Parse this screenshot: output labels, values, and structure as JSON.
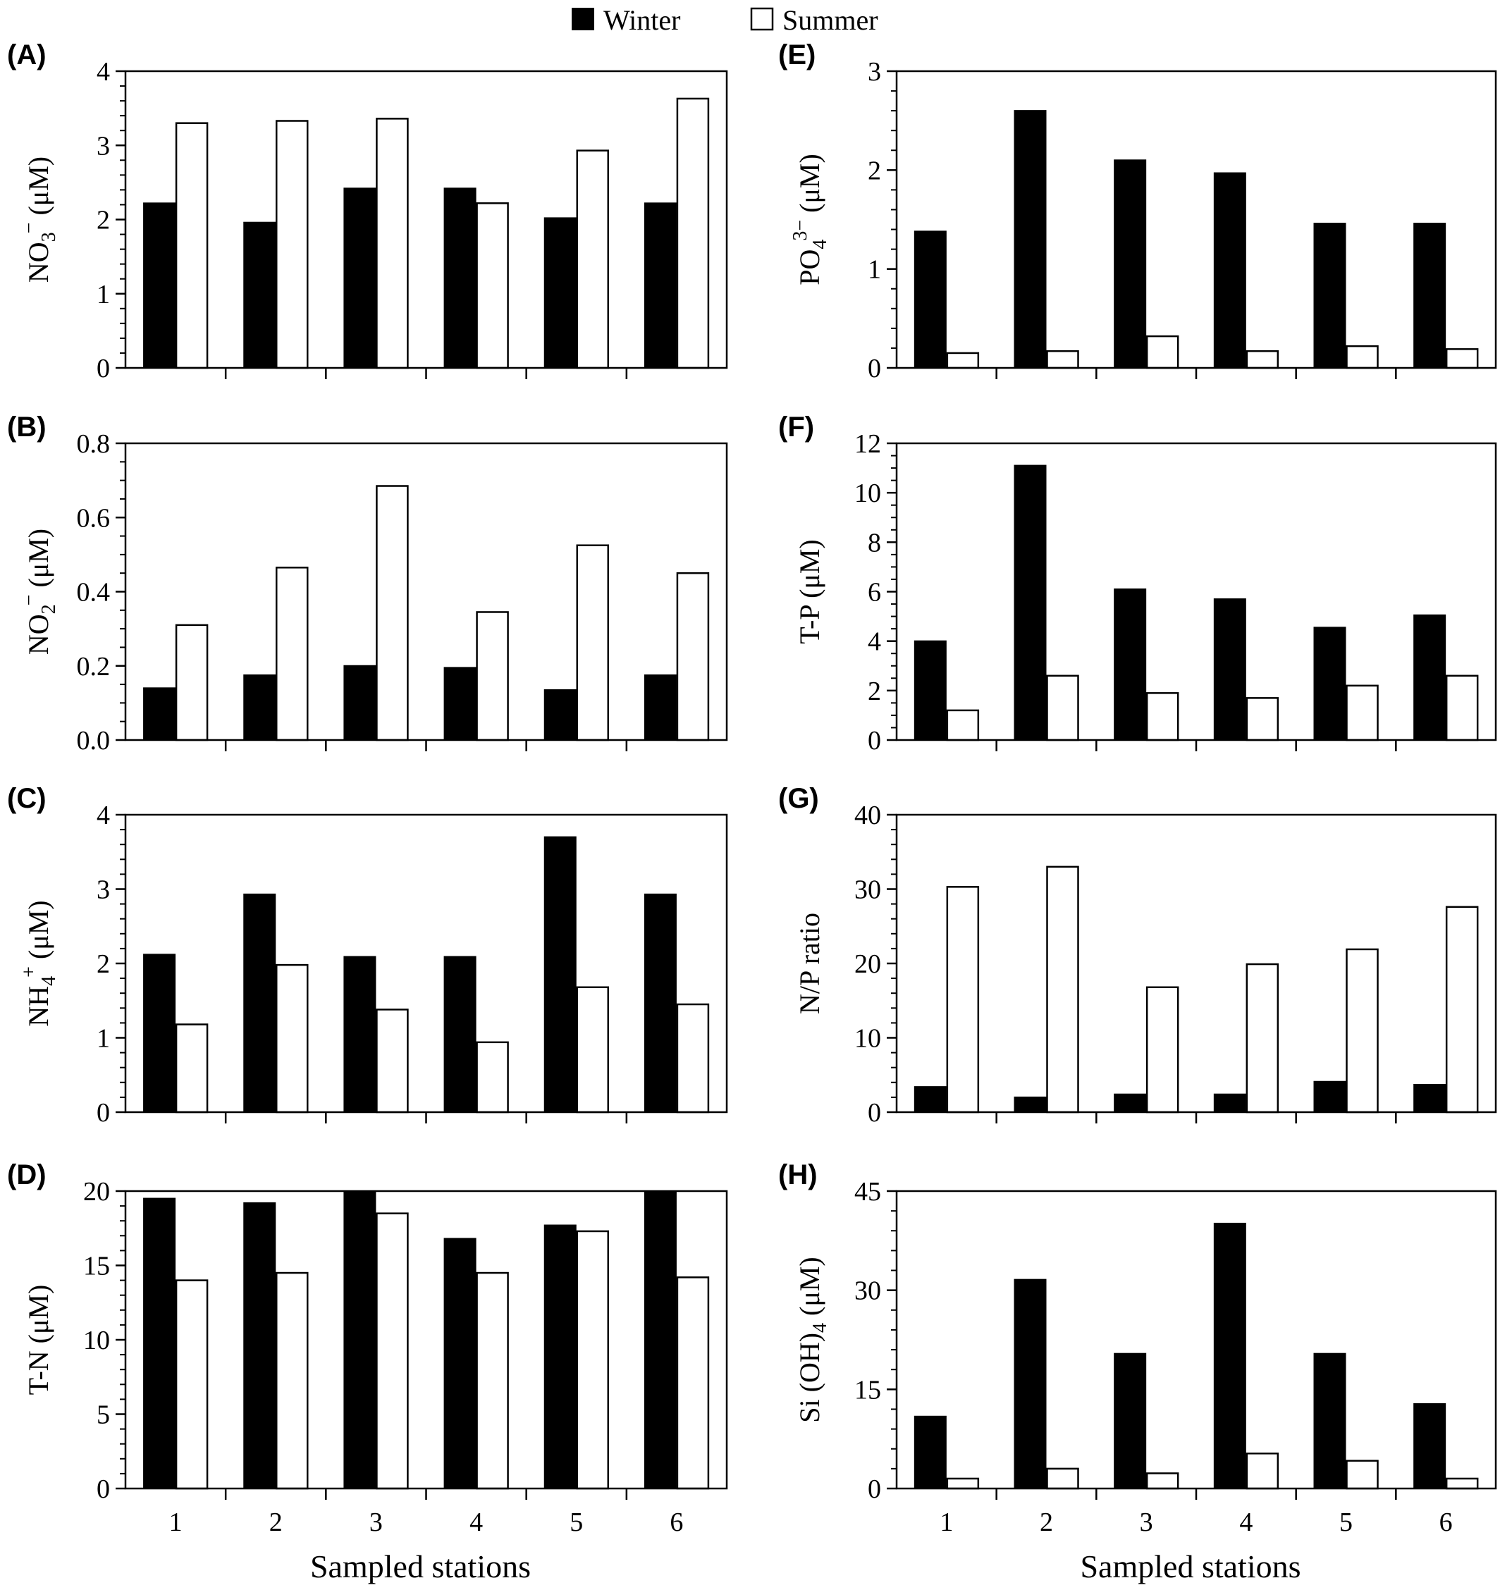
{
  "legend": {
    "winter_label": "Winter",
    "summer_label": "Summer",
    "winter_color": "#000000",
    "summer_color": "#ffffff"
  },
  "chart_data": [
    {
      "type": "bar",
      "panel_label": "(A)",
      "ylabel": "NO3⁻ (μM)",
      "ylabel_parts": {
        "base": "NO",
        "sub": "3",
        "sup": "−",
        "unit": " (μM)"
      },
      "xlabel": "",
      "categories": [
        "1",
        "2",
        "3",
        "4",
        "5",
        "6"
      ],
      "ylim": [
        0,
        4
      ],
      "yticks": [
        "0",
        "1",
        "2",
        "3",
        "4"
      ],
      "series": [
        {
          "name": "Winter",
          "values": [
            2.22,
            1.96,
            2.42,
            2.42,
            2.02,
            2.22
          ]
        },
        {
          "name": "Summer",
          "values": [
            3.3,
            3.33,
            3.36,
            2.22,
            2.93,
            3.63
          ]
        }
      ]
    },
    {
      "type": "bar",
      "panel_label": "(B)",
      "ylabel": "NO2⁻ (μM)",
      "ylabel_parts": {
        "base": "NO",
        "sub": "2",
        "sup": "−",
        "unit": " (μM)"
      },
      "xlabel": "",
      "categories": [
        "1",
        "2",
        "3",
        "4",
        "5",
        "6"
      ],
      "ylim": [
        0,
        0.8
      ],
      "yticks": [
        "0.0",
        "0.2",
        "0.4",
        "0.6",
        "0.8"
      ],
      "series": [
        {
          "name": "Winter",
          "values": [
            0.14,
            0.175,
            0.2,
            0.195,
            0.135,
            0.175
          ]
        },
        {
          "name": "Summer",
          "values": [
            0.31,
            0.465,
            0.685,
            0.345,
            0.525,
            0.45
          ]
        }
      ]
    },
    {
      "type": "bar",
      "panel_label": "(C)",
      "ylabel": "NH4⁺ (μM)",
      "ylabel_parts": {
        "base": "NH",
        "sub": "4",
        "sup": "+",
        "unit": " (μM)"
      },
      "xlabel": "",
      "categories": [
        "1",
        "2",
        "3",
        "4",
        "5",
        "6"
      ],
      "ylim": [
        0,
        4
      ],
      "yticks": [
        "0",
        "1",
        "2",
        "3",
        "4"
      ],
      "series": [
        {
          "name": "Winter",
          "values": [
            2.12,
            2.93,
            2.09,
            2.09,
            3.7,
            2.93
          ]
        },
        {
          "name": "Summer",
          "values": [
            1.18,
            1.98,
            1.38,
            0.94,
            1.68,
            1.45
          ]
        }
      ]
    },
    {
      "type": "bar",
      "panel_label": "(D)",
      "ylabel": "T-N (μM)",
      "ylabel_parts": {
        "base": "T-N",
        "sub": "",
        "sup": "",
        "unit": " (μM)"
      },
      "xlabel": "Sampled stations",
      "categories": [
        "1",
        "2",
        "3",
        "4",
        "5",
        "6"
      ],
      "ylim": [
        0,
        20
      ],
      "yticks": [
        "0",
        "5",
        "10",
        "15",
        "20"
      ],
      "series": [
        {
          "name": "Winter",
          "values": [
            19.5,
            19.2,
            20.0,
            16.8,
            17.7,
            20.0
          ]
        },
        {
          "name": "Summer",
          "values": [
            14.0,
            14.5,
            18.5,
            14.5,
            17.3,
            14.2
          ]
        }
      ]
    },
    {
      "type": "bar",
      "panel_label": "(E)",
      "ylabel": "PO4³⁻ (μM)",
      "ylabel_parts": {
        "base": "PO",
        "sub": "4",
        "sup": "3−",
        "unit": " (μM)"
      },
      "xlabel": "",
      "categories": [
        "1",
        "2",
        "3",
        "4",
        "5",
        "6"
      ],
      "ylim": [
        0,
        3
      ],
      "yticks": [
        "0",
        "1",
        "2",
        "3"
      ],
      "series": [
        {
          "name": "Winter",
          "values": [
            1.38,
            2.6,
            2.1,
            1.97,
            1.46,
            1.46
          ]
        },
        {
          "name": "Summer",
          "values": [
            0.15,
            0.17,
            0.32,
            0.17,
            0.22,
            0.19
          ]
        }
      ]
    },
    {
      "type": "bar",
      "panel_label": "(F)",
      "ylabel": "T-P (μM)",
      "ylabel_parts": {
        "base": "T-P",
        "sub": "",
        "sup": "",
        "unit": " (μM)"
      },
      "xlabel": "",
      "categories": [
        "1",
        "2",
        "3",
        "4",
        "5",
        "6"
      ],
      "ylim": [
        0,
        12
      ],
      "yticks": [
        "0",
        "2",
        "4",
        "6",
        "8",
        "10",
        "12"
      ],
      "series": [
        {
          "name": "Winter",
          "values": [
            4.0,
            11.1,
            6.1,
            5.7,
            4.55,
            5.05
          ]
        },
        {
          "name": "Summer",
          "values": [
            1.2,
            2.6,
            1.9,
            1.7,
            2.2,
            2.6
          ]
        }
      ]
    },
    {
      "type": "bar",
      "panel_label": "(G)",
      "ylabel": "N/P ratio",
      "ylabel_parts": {
        "base": "N/P ratio",
        "sub": "",
        "sup": "",
        "unit": ""
      },
      "xlabel": "",
      "categories": [
        "1",
        "2",
        "3",
        "4",
        "5",
        "6"
      ],
      "ylim": [
        0,
        40
      ],
      "yticks": [
        "0",
        "10",
        "20",
        "30",
        "40"
      ],
      "series": [
        {
          "name": "Winter",
          "values": [
            3.4,
            2.0,
            2.4,
            2.4,
            4.1,
            3.7
          ]
        },
        {
          "name": "Summer",
          "values": [
            30.3,
            33.0,
            16.8,
            19.9,
            21.9,
            27.6
          ]
        }
      ]
    },
    {
      "type": "bar",
      "panel_label": "(H)",
      "ylabel": "Si (OH)4 (μM)",
      "ylabel_parts": {
        "base": "Si (OH)",
        "sub": "4",
        "sup": "",
        "unit": " (μM)"
      },
      "xlabel": "Sampled stations",
      "categories": [
        "1",
        "2",
        "3",
        "4",
        "5",
        "6"
      ],
      "ylim": [
        0,
        45
      ],
      "yticks": [
        "0",
        "15",
        "30",
        "45"
      ],
      "series": [
        {
          "name": "Winter",
          "values": [
            10.9,
            31.6,
            20.4,
            40.1,
            20.4,
            12.8
          ]
        },
        {
          "name": "Summer",
          "values": [
            1.5,
            3.0,
            2.3,
            5.3,
            4.2,
            1.5
          ]
        }
      ]
    }
  ]
}
